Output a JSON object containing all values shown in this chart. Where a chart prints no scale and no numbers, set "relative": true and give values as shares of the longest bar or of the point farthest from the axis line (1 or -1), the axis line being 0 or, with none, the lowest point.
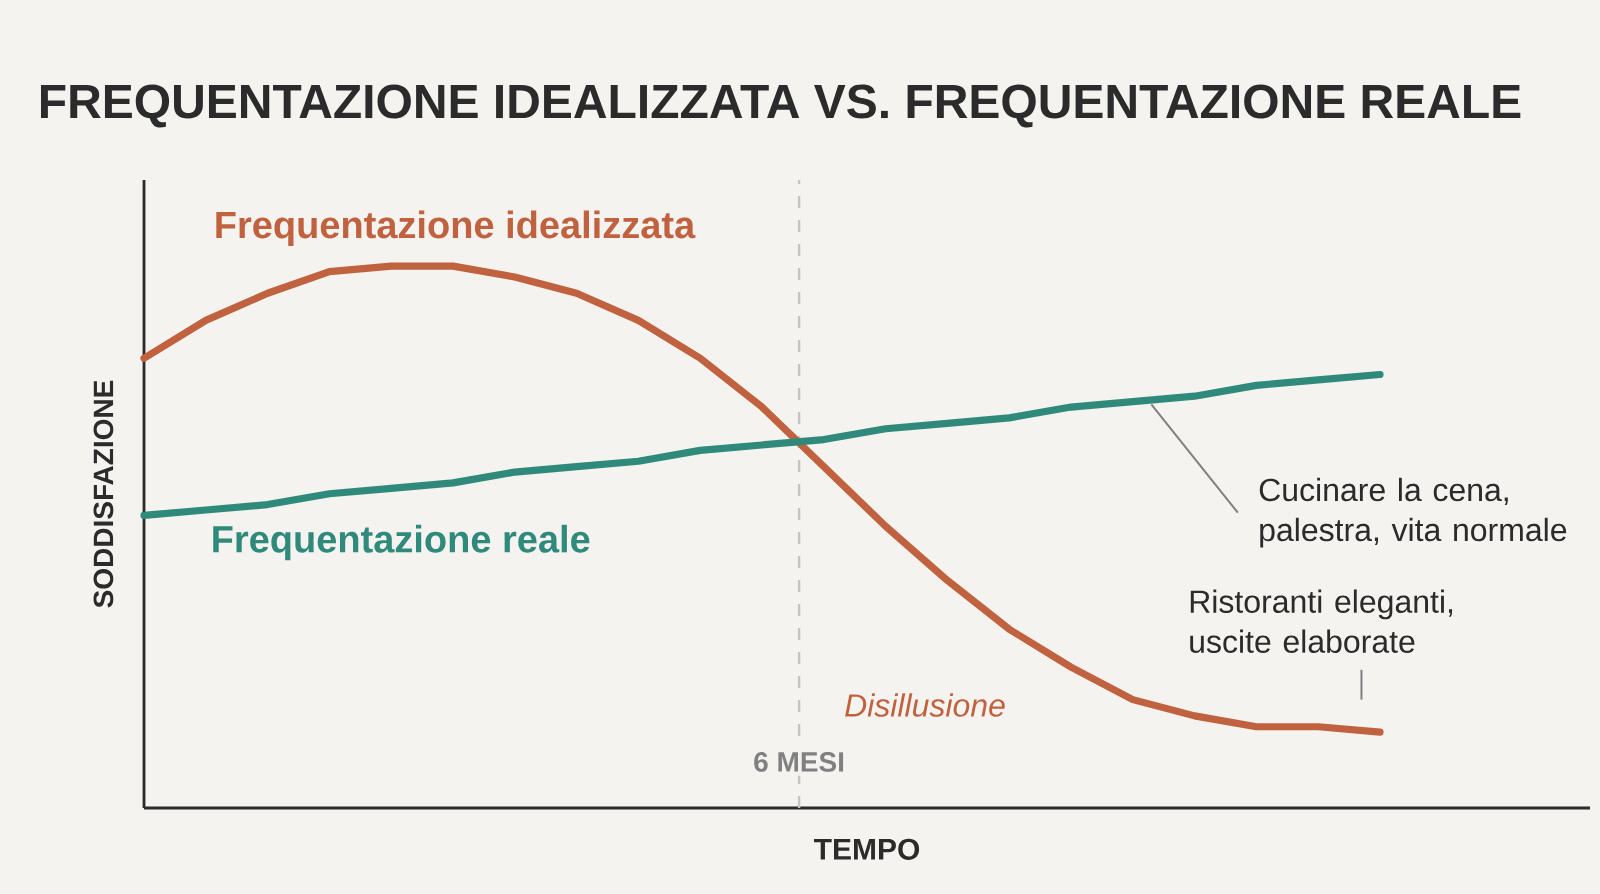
{
  "chart_data": {
    "type": "line",
    "title": "FREQUENTAZIONE IDEALIZZATA VS. FREQUENTAZIONE REALE",
    "xlabel": "TEMPO",
    "ylabel": "SODDISFAZIONE",
    "relative": true,
    "categories": [
      null,
      null,
      null,
      null,
      null,
      null,
      null,
      null,
      null,
      null,
      null,
      null,
      null,
      null,
      null,
      null,
      null,
      null,
      null,
      null,
      null
    ],
    "series": [
      {
        "name": "Frequentazione idealizzata",
        "color": "#c0623f",
        "values": [
          0.83,
          0.9,
          0.95,
          0.99,
          1.0,
          1.0,
          0.98,
          0.95,
          0.9,
          0.83,
          0.74,
          0.63,
          0.52,
          0.42,
          0.33,
          0.26,
          0.2,
          0.17,
          0.15,
          0.15,
          0.14
        ]
      },
      {
        "name": "Frequentazione reale",
        "color": "#2f8a7b",
        "values": [
          0.54,
          0.55,
          0.56,
          0.58,
          0.59,
          0.6,
          0.62,
          0.63,
          0.64,
          0.66,
          0.67,
          0.68,
          0.7,
          0.71,
          0.72,
          0.74,
          0.75,
          0.76,
          0.78,
          0.79,
          0.8
        ]
      }
    ],
    "annotations": [
      "Disillusione",
      "Cucinare la cena, palestra, vita normale",
      "Ristoranti eleganti, uscite elaborate",
      "6 MESI"
    ]
  }
}
